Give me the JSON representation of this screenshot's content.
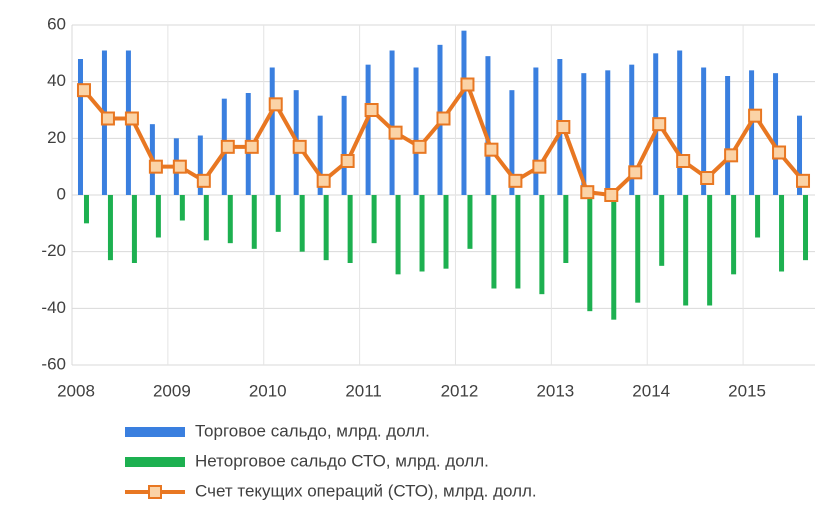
{
  "chart_data": {
    "type": "bar_line",
    "categories": [
      "2008",
      null,
      null,
      null,
      "2009",
      null,
      null,
      null,
      "2010",
      null,
      null,
      null,
      "2011",
      null,
      null,
      null,
      "2012",
      null,
      null,
      null,
      "2013",
      null,
      null,
      null,
      "2014",
      null,
      null,
      null,
      "2015",
      null,
      null
    ],
    "series": [
      {
        "name": "Торговое сальдо, млрд. долл.",
        "color": "#3a7fdf",
        "kind": "bar",
        "values": [
          48,
          51,
          51,
          25,
          20,
          21,
          34,
          36,
          45,
          37,
          28,
          35,
          46,
          51,
          45,
          53,
          58,
          49,
          37,
          45,
          48,
          43,
          44,
          46,
          50,
          51,
          45,
          42,
          44,
          43,
          28
        ]
      },
      {
        "name": "Неторговое сальдо СТО, млрд. долл.",
        "color": "#1db050",
        "kind": "bar",
        "values": [
          -10,
          -23,
          -24,
          -15,
          -9,
          -16,
          -17,
          -19,
          -13,
          -20,
          -23,
          -24,
          -17,
          -28,
          -27,
          -26,
          -19,
          -33,
          -33,
          -35,
          -24,
          -41,
          -44,
          -38,
          -25,
          -39,
          -39,
          -28,
          -15,
          -27,
          -23
        ]
      },
      {
        "name": "Счет текущих операций (СТО), млрд. долл.",
        "color": "#e87722",
        "kind": "line",
        "values": [
          37,
          27,
          27,
          10,
          10,
          5,
          17,
          17,
          32,
          17,
          5,
          12,
          30,
          22,
          17,
          27,
          39,
          16,
          5,
          10,
          24,
          1,
          0,
          8,
          25,
          12,
          6,
          14,
          28,
          15,
          5
        ]
      }
    ],
    "ylim": [
      -60,
      60
    ],
    "yticks": [
      60,
      40,
      20,
      0,
      -20,
      -40,
      -60
    ],
    "grid": true
  }
}
